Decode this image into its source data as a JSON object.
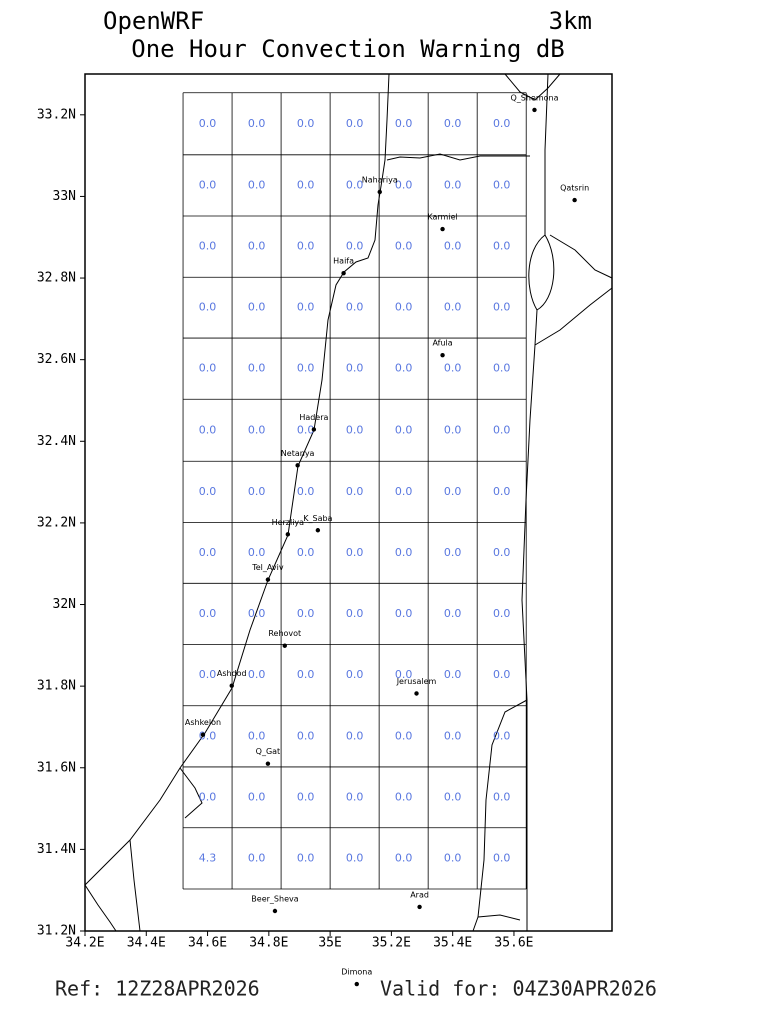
{
  "chart_data": {
    "type": "map",
    "title": "OpenWRF",
    "title_right": "3km",
    "subtitle": "One Hour Convection Warning dB",
    "ref": "Ref: 12Z28APR2026",
    "valid": "Valid for: 04Z30APR2026",
    "xlim": [
      34.2,
      35.92
    ],
    "ylim": [
      31.2,
      33.3
    ],
    "xticks": [
      {
        "value": 34.2,
        "label": "34.2E"
      },
      {
        "value": 34.4,
        "label": "34.4E"
      },
      {
        "value": 34.6,
        "label": "34.6E"
      },
      {
        "value": 34.8,
        "label": "34.8E"
      },
      {
        "value": 35.0,
        "label": "35E"
      },
      {
        "value": 35.2,
        "label": "35.2E"
      },
      {
        "value": 35.4,
        "label": "35.4E"
      },
      {
        "value": 35.6,
        "label": "35.6E"
      }
    ],
    "yticks": [
      {
        "value": 31.2,
        "label": "31.2N"
      },
      {
        "value": 31.4,
        "label": "31.4N"
      },
      {
        "value": 31.6,
        "label": "31.6N"
      },
      {
        "value": 31.8,
        "label": "31.8N"
      },
      {
        "value": 32.0,
        "label": "32N"
      },
      {
        "value": 32.2,
        "label": "32.2N"
      },
      {
        "value": 32.4,
        "label": "32.4N"
      },
      {
        "value": 32.6,
        "label": "32.6N"
      },
      {
        "value": 32.8,
        "label": "32.8N"
      },
      {
        "value": 33.0,
        "label": "33N"
      },
      {
        "value": 33.2,
        "label": "33.2N"
      }
    ],
    "grid": {
      "color": "#5a78e0",
      "lon_edges": [
        34.52,
        34.68,
        34.84,
        35.0,
        35.16,
        35.32,
        35.48,
        35.64
      ],
      "lat_edges": [
        33.254,
        33.102,
        32.952,
        32.802,
        32.653,
        32.503,
        32.351,
        32.201,
        32.052,
        31.902,
        31.752,
        31.602,
        31.453,
        31.303
      ],
      "values": [
        [
          0,
          0,
          0,
          0,
          0,
          0,
          0
        ],
        [
          0,
          0,
          0,
          0,
          0,
          0,
          0
        ],
        [
          0,
          0,
          0,
          0,
          0,
          0,
          0
        ],
        [
          0,
          0,
          0,
          0,
          0,
          0,
          0
        ],
        [
          0,
          0,
          0,
          0,
          0,
          0,
          0
        ],
        [
          0,
          0,
          0,
          0,
          0,
          0,
          0
        ],
        [
          0,
          0,
          0,
          0,
          0,
          0,
          0
        ],
        [
          0,
          0,
          0,
          0,
          0,
          0,
          0
        ],
        [
          0,
          0,
          0,
          0,
          0,
          0,
          0
        ],
        [
          0,
          0,
          0,
          0,
          0,
          0,
          0
        ],
        [
          0,
          0,
          0,
          0,
          0,
          0,
          0
        ],
        [
          0,
          0,
          0,
          0,
          0,
          0,
          0
        ],
        [
          4.3,
          0,
          0,
          0,
          0,
          0,
          0
        ]
      ],
      "value_labels": [
        [
          "0.0",
          "0.0",
          "0.0",
          "0.0",
          "0.0",
          "0.0",
          "0.0"
        ],
        [
          "0.0",
          "0.0",
          "0.0",
          "0.0",
          "0.0",
          "0.0",
          "0.0"
        ],
        [
          "0.0",
          "0.0",
          "0.0",
          "0.0",
          "0.0",
          "0.0",
          "0.0"
        ],
        [
          "0.0",
          "0.0",
          "0.0",
          "0.0",
          "0.0",
          "0.0",
          "0.0"
        ],
        [
          "0.0",
          "0.0",
          "0.0",
          "0.0",
          "0.0",
          "0.0",
          "0.0"
        ],
        [
          "0.0",
          "0.0",
          "0.0",
          "0.0",
          "0.0",
          "0.0",
          "0.0"
        ],
        [
          "0.0",
          "0.0",
          "0.0",
          "0.0",
          "0.0",
          "0.0",
          "0.0"
        ],
        [
          "0.0",
          "0.0",
          "0.0",
          "0.0",
          "0.0",
          "0.0",
          "0.0"
        ],
        [
          "0.0",
          "0.0",
          "0.0",
          "0.0",
          "0.0",
          "0.0",
          "0.0"
        ],
        [
          "0.0",
          "0.0",
          "0.0",
          "0.0",
          "0.0",
          "0.0",
          "0.0"
        ],
        [
          "0.0",
          "0.0",
          "0.0",
          "0.0",
          "0.0",
          "0.0",
          "0.0"
        ],
        [
          "0.0",
          "0.0",
          "0.0",
          "0.0",
          "0.0",
          "0.0",
          "0.0"
        ],
        [
          "4.3",
          "0.0",
          "0.0",
          "0.0",
          "0.0",
          "0.0",
          "0.0"
        ]
      ]
    },
    "cities": [
      {
        "name": "Q_Shemona",
        "lon": 35.667,
        "lat": 33.212
      },
      {
        "name": "Qatsrin",
        "lon": 35.798,
        "lat": 32.991
      },
      {
        "name": "Nahariya",
        "lon": 35.162,
        "lat": 33.011
      },
      {
        "name": "Karmiel",
        "lon": 35.367,
        "lat": 32.92
      },
      {
        "name": "Haifa",
        "lon": 35.044,
        "lat": 32.812
      },
      {
        "name": "Afula",
        "lon": 35.367,
        "lat": 32.611
      },
      {
        "name": "Hadera",
        "lon": 34.947,
        "lat": 32.429
      },
      {
        "name": "Netanya",
        "lon": 34.894,
        "lat": 32.341
      },
      {
        "name": "Herzliya",
        "lon": 34.862,
        "lat": 32.172
      },
      {
        "name": "K_Saba",
        "lon": 34.96,
        "lat": 32.182
      },
      {
        "name": "Tel_Aviv",
        "lon": 34.797,
        "lat": 32.061
      },
      {
        "name": "Rehovot",
        "lon": 34.852,
        "lat": 31.899
      },
      {
        "name": "Ashdod",
        "lon": 34.679,
        "lat": 31.801
      },
      {
        "name": "Jerusalem",
        "lon": 35.282,
        "lat": 31.782
      },
      {
        "name": "Ashkelon",
        "lon": 34.585,
        "lat": 31.681
      },
      {
        "name": "Q_Gat",
        "lon": 34.797,
        "lat": 31.61
      },
      {
        "name": "Beer_Sheva",
        "lon": 34.82,
        "lat": 31.249
      },
      {
        "name": "Arad",
        "lon": 35.292,
        "lat": 31.259
      },
      {
        "name": "Dimona",
        "lon": 35.087,
        "lat": 31.07
      }
    ]
  }
}
